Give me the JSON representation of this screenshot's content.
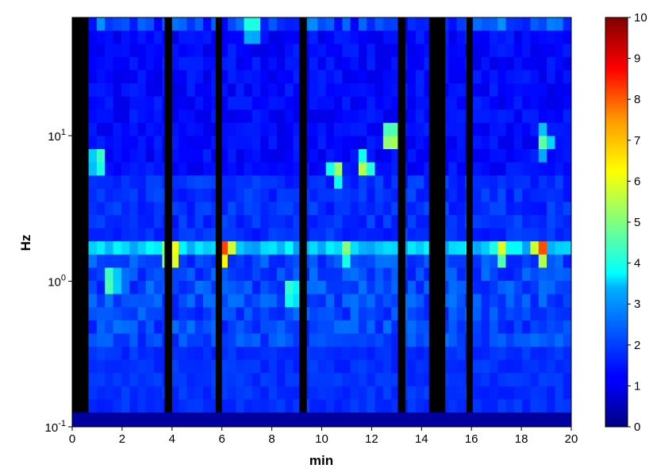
{
  "chart_data": {
    "type": "heatmap",
    "title": "",
    "xlabel": "min",
    "ylabel": "Hz",
    "xlim": [
      0,
      20
    ],
    "x_ticks": [
      0,
      2,
      4,
      6,
      8,
      10,
      12,
      14,
      16,
      18,
      20
    ],
    "y_scale": "log",
    "y_ticks": [
      {
        "position": 1,
        "base": "10",
        "exp": "-1"
      },
      {
        "position": 2,
        "base": "10",
        "exp": "0"
      },
      {
        "position": 3,
        "base": "10",
        "exp": "1"
      }
    ],
    "colorbar": {
      "colormap": "jet",
      "min": 0,
      "max": 10,
      "ticks": [
        0,
        1,
        2,
        3,
        4,
        5,
        6,
        7,
        8,
        9,
        10
      ]
    },
    "time_bins": 61,
    "freq_bins": 30,
    "bottom_band_value": 0.3,
    "gaps": [
      [
        0.0,
        0.65
      ],
      [
        3.7,
        4.0
      ],
      [
        5.75,
        6.0
      ],
      [
        9.1,
        9.4
      ],
      [
        13.05,
        13.35
      ],
      [
        14.3,
        14.95
      ],
      [
        15.8,
        16.05
      ]
    ],
    "background_level": {
      "low_freq": 1.5,
      "band_1_to_2": 2.8,
      "mid_freq": 1.4,
      "high_freq": 1.0
    },
    "hotspots": [
      {
        "min": 6.1,
        "hz": 0.62,
        "value": 9.0
      },
      {
        "min": 18.8,
        "hz": 0.6,
        "value": 8.6
      },
      {
        "min": 4.0,
        "hz": 0.65,
        "value": 7.8
      },
      {
        "min": 17.2,
        "hz": 0.62,
        "value": 6.5
      },
      {
        "min": 11.0,
        "hz": 0.62,
        "value": 5.6
      },
      {
        "min": 1.5,
        "hz": 1.0,
        "value": 5.5
      },
      {
        "min": 8.8,
        "hz": 1.2,
        "value": 5.3
      },
      {
        "min": 12.8,
        "hz": 0.105,
        "value": 6.8
      },
      {
        "min": 11.7,
        "hz": 0.165,
        "value": 6.0
      },
      {
        "min": 10.6,
        "hz": 0.175,
        "value": 5.8
      },
      {
        "min": 1.1,
        "hz": 0.15,
        "value": 5.2
      },
      {
        "min": 7.2,
        "hz": 0.018,
        "value": 4.5
      },
      {
        "min": 18.9,
        "hz": 0.11,
        "value": 5.0
      }
    ]
  }
}
